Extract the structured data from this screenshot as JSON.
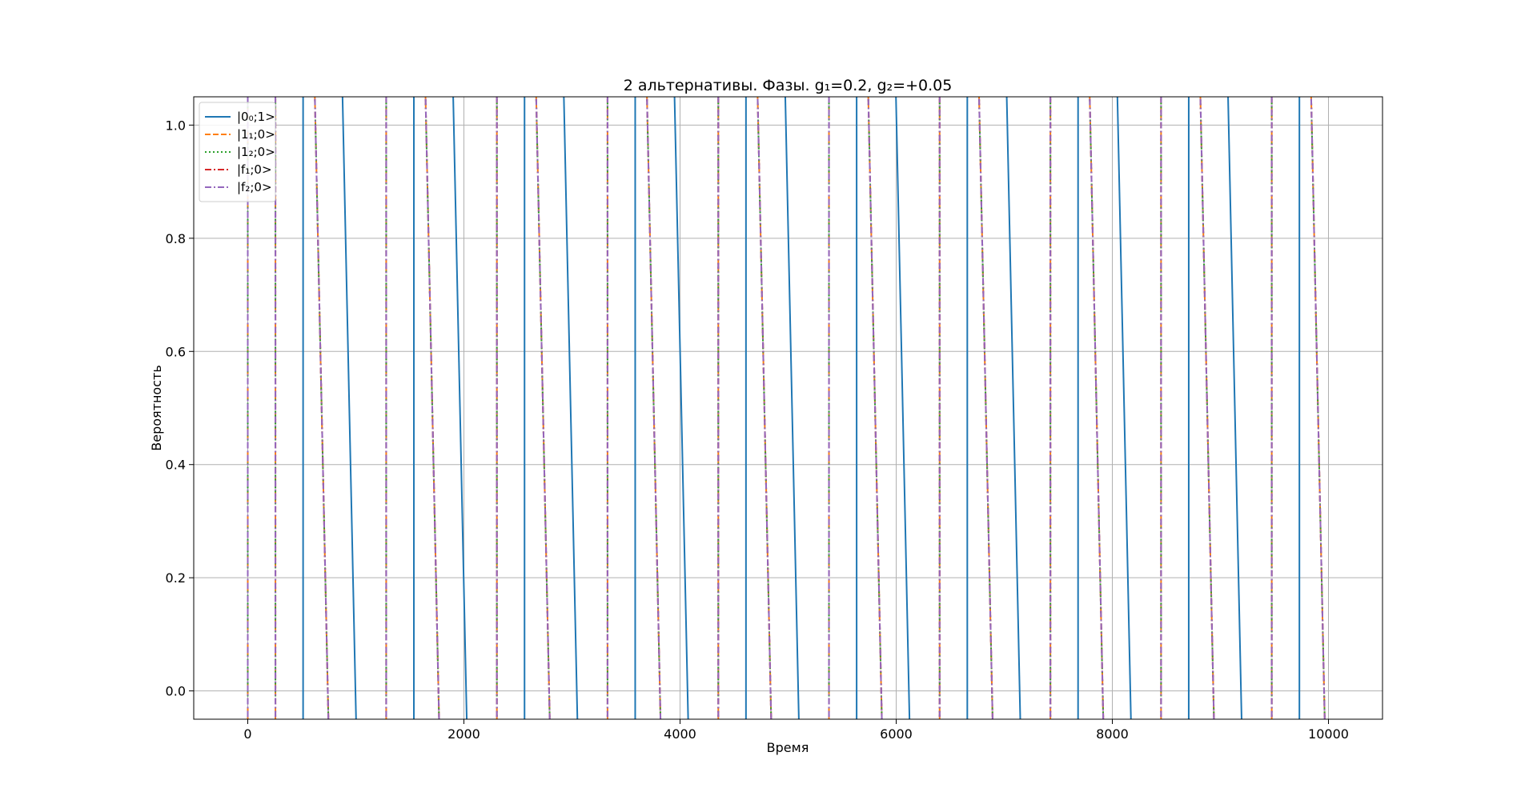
{
  "chart_data": {
    "type": "line",
    "title": "2 альтернативы. Фазы. g₁=0.2, g₂=+0.05",
    "xlabel": "Время",
    "ylabel": "Вероятность",
    "xlim": [
      -500,
      10500
    ],
    "ylim": [
      -0.05,
      1.05
    ],
    "xticks": [
      "0",
      "2000",
      "4000",
      "6000",
      "8000",
      "10000"
    ],
    "xtick_values": [
      0,
      2000,
      4000,
      6000,
      8000,
      10000
    ],
    "yticks": [
      "0.0",
      "0.2",
      "0.4",
      "0.6",
      "0.8",
      "1.0"
    ],
    "ytick_values": [
      0.0,
      0.2,
      0.4,
      0.6,
      0.8,
      1.0
    ],
    "grid": true,
    "legend_position": "top-left",
    "series": [
      {
        "name": "|0₀;1>",
        "color": "#1f77b4",
        "style": "solid",
        "rises": [
          512,
          1537,
          2561,
          3585,
          4610,
          5634,
          6658,
          7683,
          8707,
          9731
        ],
        "falls": [
          [
            854,
            1025
          ],
          [
            1878,
            2049
          ],
          [
            2902,
            3073
          ],
          [
            3926,
            4098
          ],
          [
            4951,
            5122
          ],
          [
            5975,
            6146
          ],
          [
            7000,
            7171
          ],
          [
            8024,
            8195
          ],
          [
            9048,
            9219
          ]
        ]
      },
      {
        "name": "|1₁;0>",
        "color": "#ff7f0e",
        "style": "dashed",
        "rises": [
          0,
          256,
          1281,
          2305,
          3329,
          4354,
          5378,
          6402,
          7427,
          8451,
          9475
        ],
        "falls": [
          [
            598,
            769
          ],
          [
            1622,
            1793
          ],
          [
            2646,
            2817
          ],
          [
            3671,
            3842
          ],
          [
            4695,
            4866
          ],
          [
            5719,
            5890
          ],
          [
            6744,
            6915
          ],
          [
            7768,
            7939
          ],
          [
            8792,
            8963
          ],
          [
            9817,
            9988
          ]
        ]
      },
      {
        "name": "|1₂;0>",
        "color": "#2ca02c",
        "style": "dotted",
        "rises": [
          0,
          256,
          1281,
          2305,
          3329,
          4354,
          5378,
          6402,
          7427,
          8451,
          9475
        ],
        "falls": [
          [
            598,
            769
          ],
          [
            1622,
            1793
          ],
          [
            2646,
            2817
          ],
          [
            3671,
            3842
          ],
          [
            4695,
            4866
          ],
          [
            5719,
            5890
          ],
          [
            6744,
            6915
          ],
          [
            7768,
            7939
          ],
          [
            8792,
            8963
          ],
          [
            9817,
            9988
          ]
        ]
      },
      {
        "name": "|f₁;0>",
        "color": "#d62728",
        "style": "dashdot",
        "rises": [
          0,
          256,
          1281,
          2305,
          3329,
          4354,
          5378,
          6402,
          7427,
          8451,
          9475
        ],
        "falls": [
          [
            598,
            769
          ],
          [
            1622,
            1793
          ],
          [
            2646,
            2817
          ],
          [
            3671,
            3842
          ],
          [
            4695,
            4866
          ],
          [
            5719,
            5890
          ],
          [
            6744,
            6915
          ],
          [
            7768,
            7939
          ],
          [
            8792,
            8963
          ],
          [
            9817,
            9988
          ]
        ]
      },
      {
        "name": "|f₂;0>",
        "color": "#9467bd",
        "style": "dashdot",
        "rises": [
          0,
          256,
          1281,
          2305,
          3329,
          4354,
          5378,
          6402,
          7427,
          8451,
          9475
        ],
        "falls": [
          [
            598,
            769
          ],
          [
            1622,
            1793
          ],
          [
            2646,
            2817
          ],
          [
            3671,
            3842
          ],
          [
            4695,
            4866
          ],
          [
            5719,
            5890
          ],
          [
            6744,
            6915
          ],
          [
            7768,
            7939
          ],
          [
            8792,
            8963
          ],
          [
            9817,
            9988
          ]
        ]
      }
    ]
  }
}
